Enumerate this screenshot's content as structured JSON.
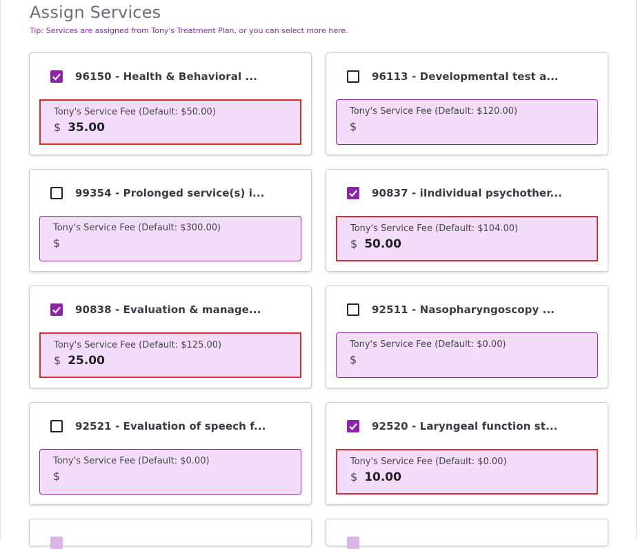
{
  "header": {
    "title": "Assign Services",
    "tip": "Tip: Services are assigned from Tony's Treatment Plan, or you can select more here."
  },
  "colors": {
    "accent": "#8e24aa",
    "fee_bg": "#f4ddfb",
    "highlight": "#d32f2f"
  },
  "services": [
    {
      "name": "96150 - Health & Behavioral ...",
      "checked": true,
      "fee_label": "Tony's Service Fee (Default: $50.00)",
      "currency": "$",
      "value": "35.00"
    },
    {
      "name": "96113 - Developmental test a...",
      "checked": false,
      "fee_label": "Tony's Service Fee (Default: $120.00)",
      "currency": "$",
      "value": ""
    },
    {
      "name": "99354 - Prolonged service(s) i...",
      "checked": false,
      "fee_label": "Tony's Service Fee (Default: $300.00)",
      "currency": "$",
      "value": ""
    },
    {
      "name": "90837 - iIndividual psychother...",
      "checked": true,
      "fee_label": "Tony's Service Fee (Default: $104.00)",
      "currency": "$",
      "value": "50.00"
    },
    {
      "name": "90838 - Evaluation & manage...",
      "checked": true,
      "fee_label": "Tony's Service Fee (Default: $125.00)",
      "currency": "$",
      "value": "25.00"
    },
    {
      "name": "92511 - Nasopharyngoscopy ...",
      "checked": false,
      "fee_label": "Tony's Service Fee (Default: $0.00)",
      "currency": "$",
      "value": ""
    },
    {
      "name": "92521 - Evaluation of speech f...",
      "checked": false,
      "fee_label": "Tony's Service Fee (Default: $0.00)",
      "currency": "$",
      "value": ""
    },
    {
      "name": "92520 - Laryngeal function st...",
      "checked": true,
      "fee_label": "Tony's Service Fee (Default: $0.00)",
      "currency": "$",
      "value": "10.00"
    }
  ]
}
